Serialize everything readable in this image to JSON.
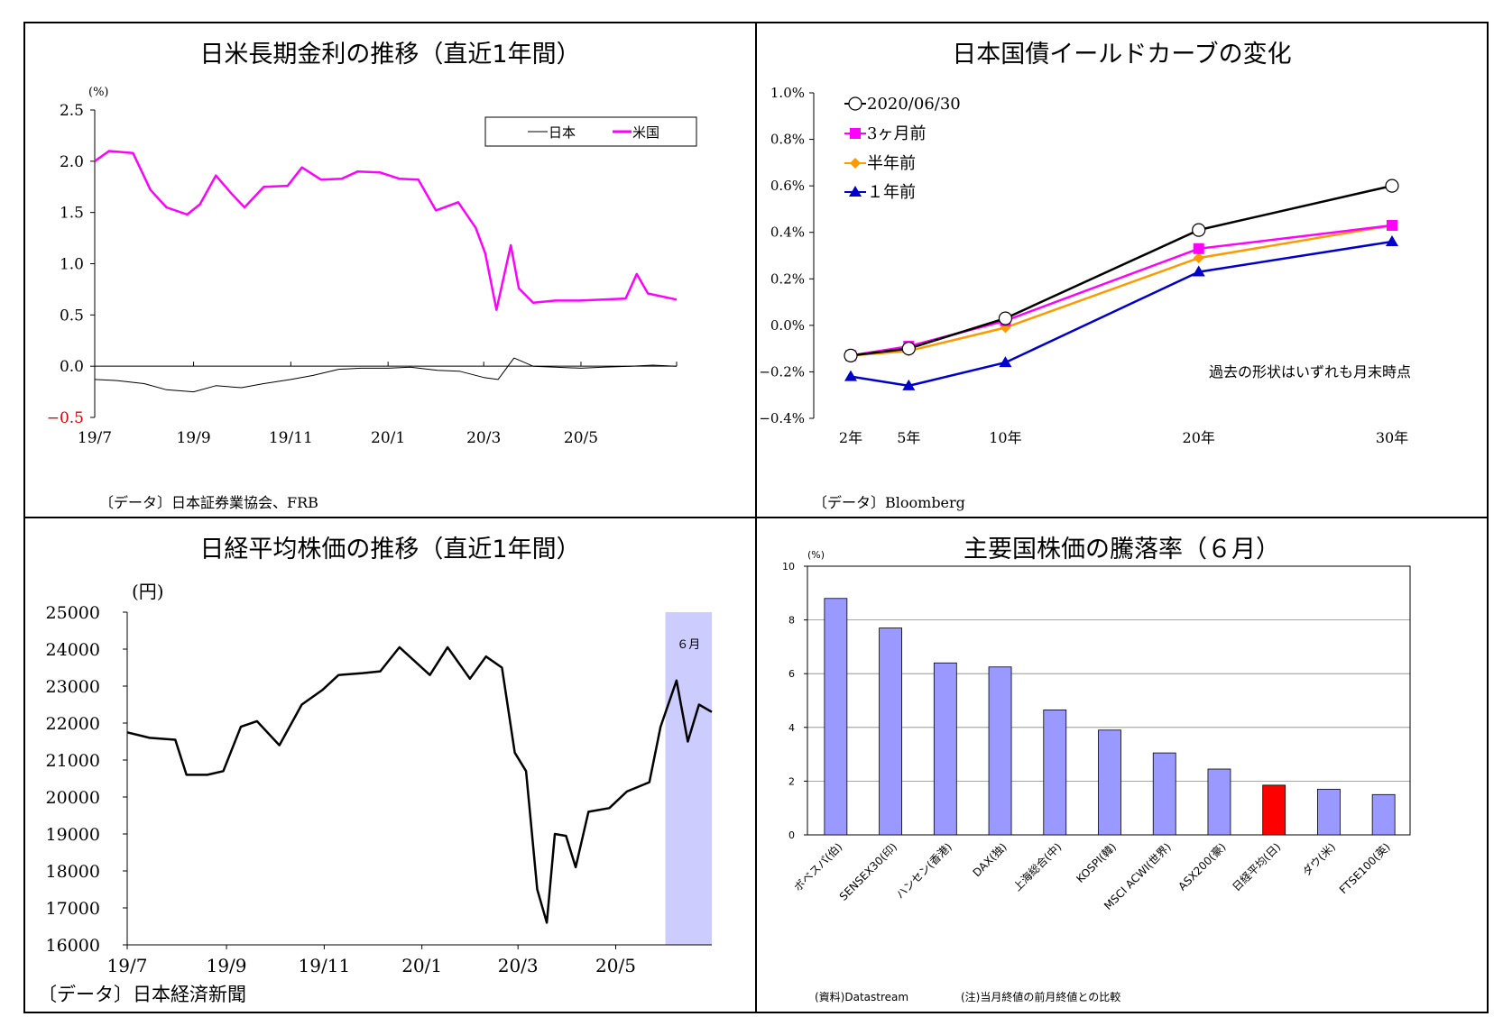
{
  "charts": {
    "jp_us_rates": {
      "title": "日米長期金利の推移（直近1年間）",
      "unit": "(%)",
      "source": "〔データ〕日本証券業協会、FRB",
      "yticks": [
        "2.5",
        "2.0",
        "1.5",
        "1.0",
        "0.5",
        "0.0",
        "−0.5"
      ],
      "xticks": [
        "19/7",
        "19/9",
        "19/11",
        "20/1",
        "20/3",
        "20/5"
      ],
      "legend": [
        "日本",
        "米国"
      ]
    },
    "jgb_yield_curve": {
      "title": "日本国債イールドカーブの変化",
      "source": "〔データ〕Bloomberg",
      "note": "過去の形状はいずれも月末時点",
      "yticks": [
        "1.0%",
        "0.8%",
        "0.6%",
        "0.4%",
        "0.2%",
        "0.0%",
        "−0.2%",
        "−0.4%"
      ],
      "xticks": [
        "2年",
        "5年",
        "10年",
        "20年",
        "30年"
      ],
      "legend": [
        "2020/06/30",
        "3ヶ月前",
        "半年前",
        "１年前"
      ]
    },
    "nikkei_avg": {
      "title": "日経平均株価の推移（直近1年間）",
      "unit": "(円)",
      "source": "〔データ〕日本経済新聞",
      "highlight_label": "６月",
      "yticks": [
        "25000",
        "24000",
        "23000",
        "22000",
        "21000",
        "20000",
        "19000",
        "18000",
        "17000",
        "16000"
      ],
      "xticks": [
        "19/7",
        "19/9",
        "19/11",
        "20/1",
        "20/3",
        "20/5"
      ]
    },
    "major_stock_change": {
      "title": "主要国株価の騰落率（６月）",
      "unit": "(%)",
      "source": "(資料)Datastream",
      "note": "(注)当月終値の前月終値との比較",
      "yticks": [
        "10",
        "8",
        "6",
        "4",
        "2",
        "0"
      ]
    }
  },
  "chart_data": [
    {
      "type": "line",
      "title": "日米長期金利の推移（直近1年間）",
      "ylabel": "(%)",
      "ylim": [
        -0.5,
        2.5
      ],
      "x_range": [
        "2019-07",
        "2020-06"
      ],
      "legend_position": "top-right",
      "series": [
        {
          "name": "日本",
          "color": "#000000",
          "x": [
            "2019-07-01",
            "2019-07-15",
            "2019-08-01",
            "2019-08-15",
            "2019-09-01",
            "2019-09-15",
            "2019-10-01",
            "2019-10-15",
            "2019-11-01",
            "2019-11-15",
            "2019-12-01",
            "2019-12-15",
            "2020-01-01",
            "2020-01-15",
            "2020-02-01",
            "2020-02-15",
            "2020-03-01",
            "2020-03-10",
            "2020-03-20",
            "2020-04-01",
            "2020-04-15",
            "2020-05-01",
            "2020-05-15",
            "2020-06-01",
            "2020-06-15",
            "2020-06-30"
          ],
          "values": [
            -0.13,
            -0.14,
            -0.17,
            -0.23,
            -0.25,
            -0.19,
            -0.21,
            -0.17,
            -0.13,
            -0.09,
            -0.03,
            -0.02,
            -0.02,
            -0.01,
            -0.04,
            -0.05,
            -0.11,
            -0.13,
            0.08,
            0.0,
            -0.01,
            -0.02,
            -0.01,
            0.0,
            0.01,
            0.0
          ]
        },
        {
          "name": "米国",
          "color": "#FF00FF",
          "x": [
            "2019-07-01",
            "2019-07-10",
            "2019-07-25",
            "2019-08-05",
            "2019-08-15",
            "2019-08-28",
            "2019-09-05",
            "2019-09-15",
            "2019-09-25",
            "2019-10-03",
            "2019-10-15",
            "2019-10-30",
            "2019-11-08",
            "2019-11-20",
            "2019-12-03",
            "2019-12-13",
            "2019-12-27",
            "2020-01-08",
            "2020-01-20",
            "2020-01-31",
            "2020-02-14",
            "2020-02-25",
            "2020-03-02",
            "2020-03-09",
            "2020-03-18",
            "2020-03-23",
            "2020-04-01",
            "2020-04-15",
            "2020-04-30",
            "2020-05-15",
            "2020-05-29",
            "2020-06-05",
            "2020-06-12",
            "2020-06-30"
          ],
          "values": [
            2.0,
            2.1,
            2.08,
            1.72,
            1.55,
            1.48,
            1.58,
            1.86,
            1.68,
            1.55,
            1.75,
            1.76,
            1.94,
            1.82,
            1.83,
            1.9,
            1.89,
            1.83,
            1.82,
            1.52,
            1.6,
            1.35,
            1.1,
            0.55,
            1.18,
            0.76,
            0.62,
            0.64,
            0.64,
            0.65,
            0.66,
            0.9,
            0.71,
            0.65
          ]
        }
      ]
    },
    {
      "type": "line",
      "title": "日本国債イールドカーブの変化",
      "categories": [
        "2年",
        "5年",
        "10年",
        "20年",
        "30年"
      ],
      "x": [
        2,
        5,
        10,
        20,
        30
      ],
      "ylim": [
        -0.4,
        1.0
      ],
      "unit": "%",
      "legend_position": "top-left",
      "series": [
        {
          "name": "2020/06/30",
          "color": "#000000",
          "marker": "circle-open",
          "values": [
            -0.13,
            -0.1,
            0.03,
            0.41,
            0.6
          ]
        },
        {
          "name": "3ヶ月前",
          "color": "#FF00FF",
          "marker": "square",
          "values": [
            -0.13,
            -0.09,
            0.02,
            0.33,
            0.43
          ]
        },
        {
          "name": "半年前",
          "color": "#FF9900",
          "marker": "diamond",
          "values": [
            -0.13,
            -0.11,
            -0.01,
            0.29,
            0.43
          ]
        },
        {
          "name": "１年前",
          "color": "#0000CC",
          "marker": "triangle",
          "values": [
            -0.22,
            -0.26,
            -0.16,
            0.23,
            0.36
          ]
        }
      ]
    },
    {
      "type": "line",
      "title": "日経平均株価の推移（直近1年間）",
      "ylabel": "(円)",
      "ylim": [
        16000,
        25000
      ],
      "x_range": [
        "2019-07",
        "2020-06"
      ],
      "highlight": {
        "label": "６月",
        "from": "2020-06-01",
        "to": "2020-06-30",
        "color": "#CCCCFF"
      },
      "series": [
        {
          "name": "",
          "color": "#000000",
          "x": [
            "2019-07-01",
            "2019-07-15",
            "2019-07-31",
            "2019-08-07",
            "2019-08-20",
            "2019-08-30",
            "2019-09-10",
            "2019-09-20",
            "2019-10-04",
            "2019-10-18",
            "2019-10-31",
            "2019-11-10",
            "2019-11-25",
            "2019-12-06",
            "2019-12-18",
            "2020-01-06",
            "2020-01-17",
            "2020-01-31",
            "2020-02-10",
            "2020-02-20",
            "2020-02-28",
            "2020-03-06",
            "2020-03-13",
            "2020-03-19",
            "2020-03-24",
            "2020-03-31",
            "2020-04-06",
            "2020-04-14",
            "2020-04-27",
            "2020-05-08",
            "2020-05-22",
            "2020-05-29",
            "2020-06-08",
            "2020-06-15",
            "2020-06-22",
            "2020-06-30"
          ],
          "values": [
            21750,
            21600,
            21550,
            20600,
            20600,
            20700,
            21900,
            22050,
            21400,
            22500,
            22900,
            23300,
            23350,
            23400,
            24050,
            23300,
            24050,
            23200,
            23800,
            23500,
            21200,
            20700,
            17500,
            16600,
            19000,
            18950,
            18100,
            19600,
            19700,
            20150,
            20400,
            21900,
            23150,
            21500,
            22500,
            22300
          ]
        }
      ]
    },
    {
      "type": "bar",
      "title": "主要国株価の騰落率（６月）",
      "ylabel": "(%)",
      "ylim": [
        0,
        10
      ],
      "grid": true,
      "categories": [
        "ボベスパ(伯)",
        "SENSEX30(印)",
        "ハンセン(香港)",
        "DAX(独)",
        "上海総合(中)",
        "KOSPI(韓)",
        "MSCI ACWI(世界)",
        "ASX200(豪)",
        "日経平均(日)",
        "ダウ(米)",
        "FTSE100(英)"
      ],
      "values": [
        8.8,
        7.7,
        6.4,
        6.25,
        4.65,
        3.9,
        3.05,
        2.45,
        1.85,
        1.7,
        1.5
      ],
      "colors": [
        "#9999FF",
        "#9999FF",
        "#9999FF",
        "#9999FF",
        "#9999FF",
        "#9999FF",
        "#9999FF",
        "#9999FF",
        "#FF0000",
        "#9999FF",
        "#9999FF"
      ]
    }
  ]
}
